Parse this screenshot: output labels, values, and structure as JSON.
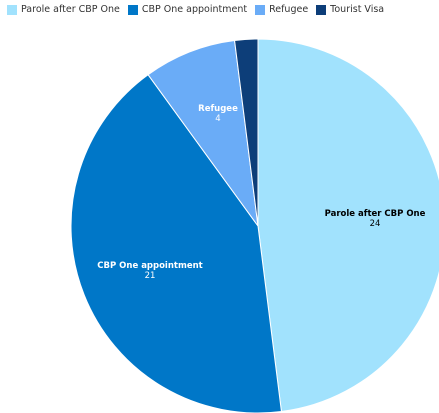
{
  "chart_data": {
    "type": "pie",
    "title": "",
    "legend_position": "top-left",
    "slices": [
      {
        "label": "Parole after CBP One",
        "value": 24,
        "color": "#a1e2fd",
        "text_color": "#000000"
      },
      {
        "label": "CBP One appointment",
        "value": 21,
        "color": "#0077c8",
        "text_color": "#ffffff"
      },
      {
        "label": "Refugee",
        "value": 4,
        "color": "#6aacf7",
        "text_color": "#ffffff"
      },
      {
        "label": "Tourist Visa",
        "value": 1,
        "color": "#0d3e79",
        "text_color": "#ffffff"
      }
    ]
  }
}
